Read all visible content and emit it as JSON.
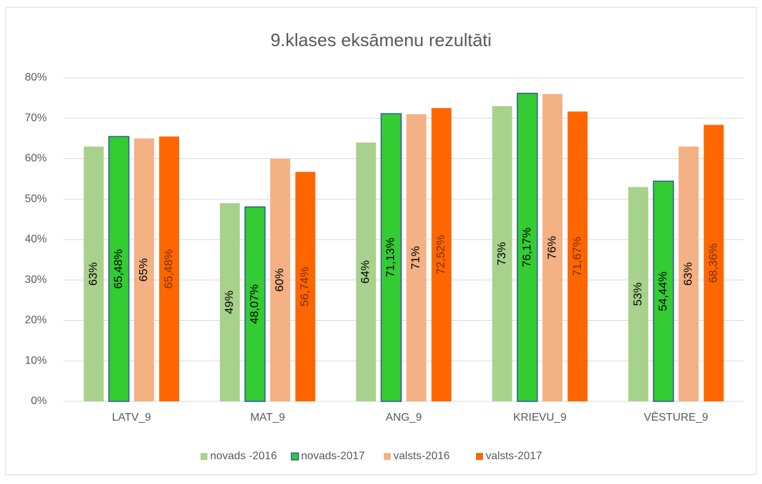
{
  "chart_data": {
    "type": "bar",
    "title": "9.klases eksāmenu rezultāti",
    "categories": [
      "LATV_9",
      "MAT_9",
      "ANG_9",
      "KRIEVU_9",
      "VĒSTURE_9"
    ],
    "series": [
      {
        "name": "novads -2016",
        "color": "#a9d18e",
        "values": [
          63,
          49,
          64,
          73,
          53
        ],
        "value_labels": [
          "63%",
          "49%",
          "64%",
          "73%",
          "53%"
        ]
      },
      {
        "name": "novads-2017",
        "color": "#33cc33",
        "values": [
          65.48,
          48.07,
          71.13,
          76.17,
          54.44
        ],
        "value_labels": [
          "65,48%",
          "48,07%",
          "71,13%",
          "76,17%",
          "54,44%"
        ]
      },
      {
        "name": "valsts-2016",
        "color": "#f4b183",
        "values": [
          65,
          60,
          71,
          76,
          63
        ],
        "value_labels": [
          "65%",
          "60%",
          "71%",
          "76%",
          "63%"
        ]
      },
      {
        "name": "valsts-2017",
        "color": "#ff6600",
        "values": [
          65.48,
          56.74,
          72.52,
          71.67,
          68.36
        ],
        "value_labels": [
          "65,48%",
          "56,74%",
          "72,52%",
          "71,67%",
          "68,36%"
        ]
      }
    ],
    "ylim": [
      0,
      80
    ],
    "yticks": [
      {
        "value": 0,
        "label": "0%"
      },
      {
        "value": 10,
        "label": "10%"
      },
      {
        "value": 20,
        "label": "20%"
      },
      {
        "value": 30,
        "label": "30%"
      },
      {
        "value": 40,
        "label": "40%"
      },
      {
        "value": 50,
        "label": "50%"
      },
      {
        "value": 60,
        "label": "60%"
      },
      {
        "value": 70,
        "label": "70%"
      },
      {
        "value": 80,
        "label": "80%"
      }
    ],
    "grid": true,
    "legend": "bottom"
  }
}
